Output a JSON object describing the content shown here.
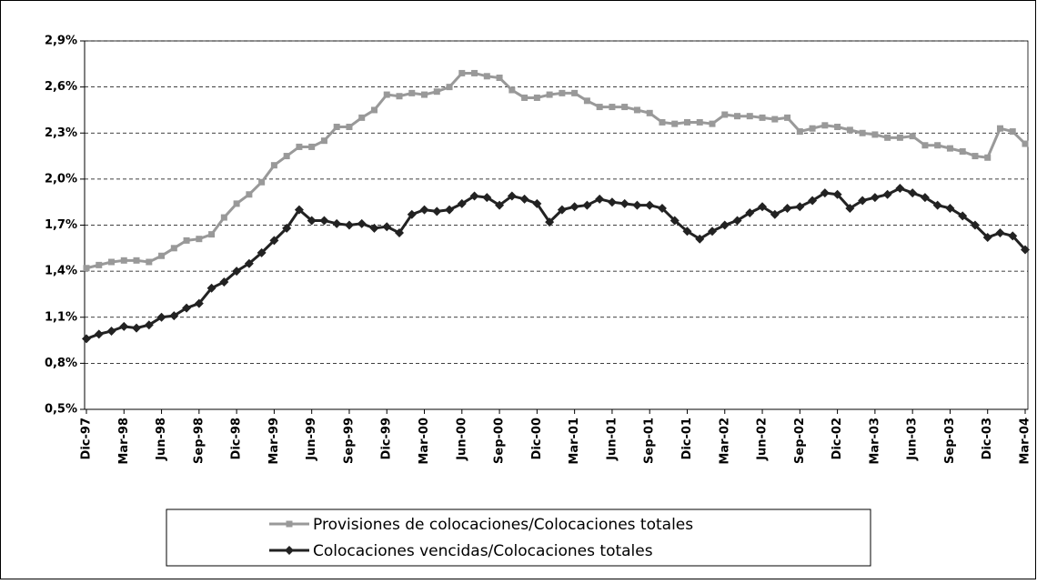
{
  "chart_data": {
    "type": "line",
    "categories": [
      "Dic-97",
      null,
      null,
      "Mar-98",
      null,
      null,
      "Jun-98",
      null,
      null,
      "Sep-98",
      null,
      null,
      "Dic-98",
      null,
      null,
      "Mar-99",
      null,
      null,
      "Jun-99",
      null,
      null,
      "Sep-99",
      null,
      null,
      "Dic-99",
      null,
      null,
      "Mar-00",
      null,
      null,
      "Jun-00",
      null,
      null,
      "Sep-00",
      null,
      null,
      "Dic-00",
      null,
      null,
      "Mar-01",
      null,
      null,
      "Jun-01",
      null,
      null,
      "Sep-01",
      null,
      null,
      "Dic-01",
      null,
      null,
      "Mar-02",
      null,
      null,
      "Jun-02",
      null,
      null,
      "Sep-02",
      null,
      null,
      "Dic-02",
      null,
      null,
      "Mar-03",
      null,
      null,
      "Jun-03",
      null,
      null,
      "Sep-03",
      null,
      null,
      "Dic-03",
      null,
      null,
      "Mar-04"
    ],
    "series": [
      {
        "name": "Provisiones de colocaciones/Colocaciones totales",
        "color": "#999999",
        "marker": "square",
        "values": [
          1.42,
          1.44,
          1.46,
          1.47,
          1.47,
          1.46,
          1.5,
          1.55,
          1.6,
          1.61,
          1.64,
          1.75,
          1.84,
          1.9,
          1.98,
          2.09,
          2.15,
          2.21,
          2.21,
          2.25,
          2.34,
          2.34,
          2.4,
          2.45,
          2.55,
          2.54,
          2.56,
          2.55,
          2.57,
          2.6,
          2.69,
          2.69,
          2.67,
          2.66,
          2.58,
          2.53,
          2.53,
          2.55,
          2.56,
          2.56,
          2.51,
          2.47,
          2.47,
          2.47,
          2.45,
          2.43,
          2.37,
          2.36,
          2.37,
          2.37,
          2.36,
          2.42,
          2.41,
          2.41,
          2.4,
          2.39,
          2.4,
          2.31,
          2.33,
          2.35,
          2.34,
          2.32,
          2.3,
          2.29,
          2.27,
          2.27,
          2.28,
          2.22,
          2.22,
          2.2,
          2.18,
          2.15,
          2.14,
          2.33,
          2.31,
          2.23
        ]
      },
      {
        "name": "Colocaciones vencidas/Colocaciones totales",
        "color": "#222222",
        "marker": "diamond",
        "values": [
          0.96,
          0.99,
          1.01,
          1.04,
          1.03,
          1.05,
          1.1,
          1.11,
          1.16,
          1.19,
          1.29,
          1.33,
          1.4,
          1.45,
          1.52,
          1.6,
          1.68,
          1.8,
          1.73,
          1.73,
          1.71,
          1.7,
          1.71,
          1.68,
          1.69,
          1.65,
          1.77,
          1.8,
          1.79,
          1.8,
          1.84,
          1.89,
          1.88,
          1.83,
          1.89,
          1.87,
          1.84,
          1.72,
          1.8,
          1.82,
          1.83,
          1.87,
          1.85,
          1.84,
          1.83,
          1.83,
          1.81,
          1.73,
          1.66,
          1.61,
          1.66,
          1.7,
          1.73,
          1.78,
          1.82,
          1.77,
          1.81,
          1.82,
          1.86,
          1.91,
          1.9,
          1.81,
          1.86,
          1.88,
          1.9,
          1.94,
          1.91,
          1.88,
          1.83,
          1.81,
          1.76,
          1.7,
          1.62,
          1.65,
          1.63,
          1.54
        ]
      }
    ],
    "ylim": [
      0.5,
      2.9
    ],
    "yticks": [
      {
        "value": 0.5,
        "label": "0,5%"
      },
      {
        "value": 0.8,
        "label": "0,8%"
      },
      {
        "value": 1.1,
        "label": "1,1%"
      },
      {
        "value": 1.4,
        "label": "1,4%"
      },
      {
        "value": 1.7,
        "label": "1,7%"
      },
      {
        "value": 2.0,
        "label": "2,0%"
      },
      {
        "value": 2.3,
        "label": "2,3%"
      },
      {
        "value": 2.6,
        "label": "2,6%"
      },
      {
        "value": 2.9,
        "label": "2,9%"
      }
    ],
    "grid": true,
    "legend": "bottom"
  }
}
